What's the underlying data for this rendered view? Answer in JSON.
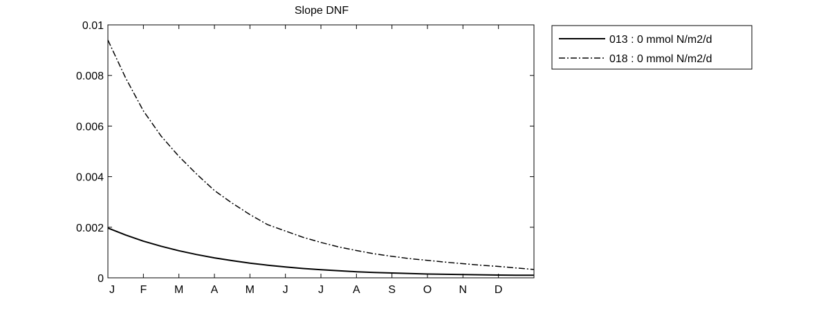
{
  "chart_data": {
    "type": "line",
    "title": "Slope DNF",
    "xlabel": "",
    "ylabel": "",
    "x_ticks": [
      "J",
      "F",
      "M",
      "A",
      "M",
      "J",
      "J",
      "A",
      "S",
      "O",
      "N",
      "D"
    ],
    "xlim": [
      0,
      12
    ],
    "ylim": [
      0,
      0.01
    ],
    "y_ticks": [
      "0",
      "0.002",
      "0.004",
      "0.006",
      "0.008",
      "0.01"
    ],
    "grid": false,
    "legend_position": "outside-top-right",
    "x": [
      0,
      0.5,
      1,
      1.5,
      2,
      2.5,
      3,
      3.5,
      4,
      4.5,
      5,
      5.5,
      6,
      6.5,
      7,
      7.5,
      8,
      8.5,
      9,
      9.5,
      10,
      10.5,
      11,
      11.5,
      12
    ],
    "series": [
      {
        "name": "013 : 0 mmol N/m2/d",
        "style": "solid",
        "color": "#000000",
        "values": [
          0.00197,
          0.00169,
          0.00145,
          0.00125,
          0.00107,
          0.00092,
          0.00079,
          0.00068,
          0.00058,
          0.0005,
          0.00043,
          0.00037,
          0.00032,
          0.00028,
          0.00024,
          0.00021,
          0.00019,
          0.00017,
          0.00015,
          0.00014,
          0.00013,
          0.00012,
          0.00011,
          0.000105,
          0.0001
        ]
      },
      {
        "name": "018 : 0 mmol N/m2/d",
        "style": "dash-dot",
        "color": "#000000",
        "values": [
          0.0094,
          0.0079,
          0.0066,
          0.0056,
          0.0048,
          0.0041,
          0.00345,
          0.00295,
          0.0025,
          0.0021,
          0.00185,
          0.0016,
          0.0014,
          0.00122,
          0.00108,
          0.00095,
          0.00085,
          0.00076,
          0.00069,
          0.00062,
          0.00056,
          0.0005,
          0.00045,
          0.00039,
          0.00033
        ]
      }
    ]
  }
}
